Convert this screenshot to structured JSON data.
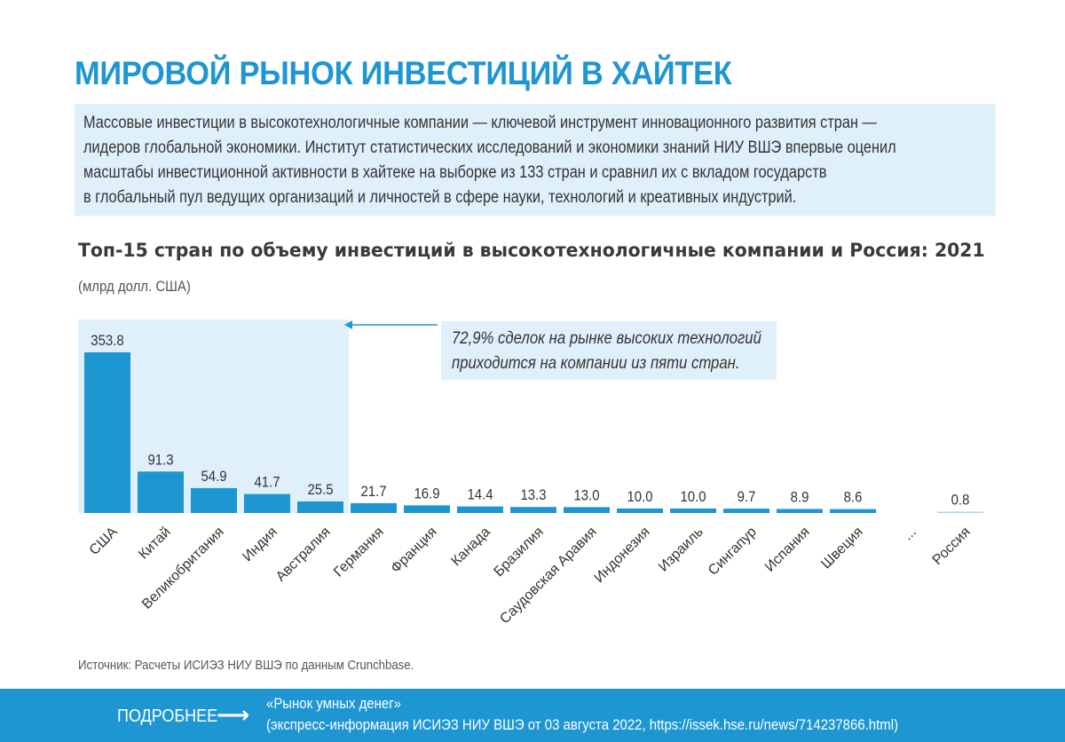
{
  "header": {
    "title": "МИРОВОЙ РЫНОК ИНВЕСТИЦИЙ В ХАЙТЕК",
    "intro_lines": [
      "Массовые инвестиции в высокотехнологичные компании — ключевой инструмент инновационного развития стран —",
      "лидеров глобальной экономики. Институт статистических исследований и экономики знаний НИУ ВШЭ впервые оценил",
      "масштабы инвестиционной активности в хайтеке на выборке из 133 стран и сравнил их с вкладом государств",
      "в глобальный пул ведущих организаций и личностей в сфере науки, технологий и креативных индустрий."
    ]
  },
  "chart_data": {
    "type": "bar",
    "title": "Топ-15 стран по объему инвестиций в высокотехнологичные компании и Россия: 2021",
    "unit": "(млрд долл. США)",
    "categories": [
      "США",
      "Китай",
      "Великобритания",
      "Индия",
      "Австралия",
      "Германия",
      "Франция",
      "Канада",
      "Бразилия",
      "Саудовская Аравия",
      "Индонезия",
      "Израиль",
      "Сингапур",
      "Испания",
      "Швеция",
      "...",
      "Россия"
    ],
    "values": [
      353.8,
      91.3,
      54.9,
      41.7,
      25.5,
      21.7,
      16.9,
      14.4,
      13.3,
      13.0,
      10.0,
      10.0,
      9.7,
      8.9,
      8.6,
      null,
      0.8
    ],
    "value_labels": [
      "353.8",
      "91.3",
      "54.9",
      "41.7",
      "25.5",
      "21.7",
      "16.9",
      "14.4",
      "13.3",
      "13.0",
      "10.0",
      "10.0",
      "9.7",
      "8.9",
      "8.6",
      "",
      "0.8"
    ],
    "highlight_count": 5,
    "annotation_lines": [
      "72,9% сделок на рынке высоких технологий",
      "приходится на компании из пяти стран."
    ],
    "colors": {
      "bar": "#1e96d2",
      "highlight": "#dff0fa",
      "russia_bar": "#a9d5ee"
    }
  },
  "source": "Источник: Расчеты ИСИЭЗ НИУ ВШЭ по данным Crunchbase.",
  "footer": {
    "more_label": "ПОДРОБНЕЕ",
    "arrow": "⟶",
    "ref_line1": "«Рынок умных денег»",
    "ref_line2": "(экспресс-информация ИСИЭЗ НИУ ВШЭ от 03 августа 2022, https://issek.hse.ru/news/714237866.html)"
  }
}
